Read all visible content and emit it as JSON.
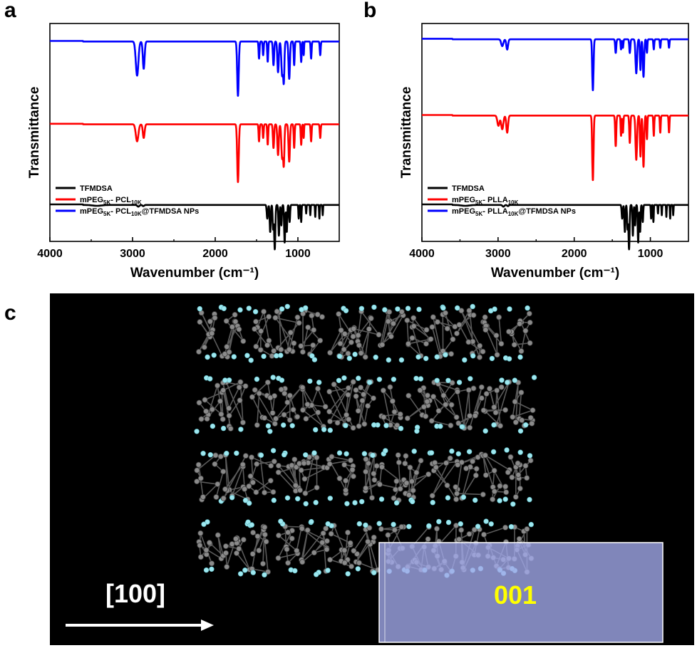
{
  "panels": {
    "a": {
      "letter": "a"
    },
    "b": {
      "letter": "b"
    },
    "c": {
      "letter": "c"
    }
  },
  "chart_data": [
    {
      "type": "line",
      "panel": "a",
      "xlabel": "Wavenumber (cm⁻¹)",
      "ylabel": "Transmittance",
      "xlim": [
        4000,
        500
      ],
      "x_reversed": true,
      "x_ticks": [
        4000,
        3000,
        2000,
        1000
      ],
      "y_ticks_shown": false,
      "legend_position": "bottom-left",
      "series": [
        {
          "name": "TFMDSA",
          "label_parts": [
            [
              "TFMDSA",
              ""
            ]
          ],
          "color": "#000000",
          "offset": 0.83,
          "baseline": 4,
          "peaks": [
            [
              3430,
              0.5,
              80
            ],
            [
              2930,
              1,
              18
            ],
            [
              2870,
              0.7,
              15
            ],
            [
              1370,
              8,
              10
            ],
            [
              1335,
              16,
              9
            ],
            [
              1300,
              14,
              8
            ],
            [
              1280,
              26,
              10
            ],
            [
              1230,
              18,
              9
            ],
            [
              1200,
              12,
              8
            ],
            [
              1160,
              22,
              9
            ],
            [
              1135,
              16,
              8
            ],
            [
              1100,
              10,
              8
            ],
            [
              990,
              8,
              6
            ],
            [
              960,
              10,
              6
            ],
            [
              900,
              5,
              5
            ],
            [
              850,
              6,
              5
            ],
            [
              790,
              7,
              5
            ],
            [
              740,
              8,
              5
            ],
            [
              700,
              6,
              5
            ]
          ]
        },
        {
          "name": "mPEG5K- PCL10K",
          "label_parts": [
            [
              "mPEG",
              ""
            ],
            [
              "5K",
              "sub"
            ],
            [
              "- PCL",
              ""
            ],
            [
              "10K",
              "sub"
            ]
          ],
          "color": "#ff0000",
          "offset": 0.46,
          "baseline": 4,
          "peaks": [
            [
              2945,
              10,
              22
            ],
            [
              2865,
              8,
              15
            ],
            [
              1725,
              34,
              13
            ],
            [
              1470,
              10,
              8
            ],
            [
              1420,
              8,
              8
            ],
            [
              1365,
              12,
              8
            ],
            [
              1295,
              14,
              10
            ],
            [
              1240,
              18,
              12
            ],
            [
              1190,
              20,
              14
            ],
            [
              1170,
              22,
              10
            ],
            [
              1105,
              22,
              12
            ],
            [
              1045,
              14,
              8
            ],
            [
              960,
              12,
              8
            ],
            [
              930,
              8,
              6
            ],
            [
              840,
              10,
              8
            ],
            [
              730,
              8,
              8
            ]
          ]
        },
        {
          "name": "mPEG5K- PCL10K@TFMDSA NPs",
          "label_parts": [
            [
              "mPEG",
              ""
            ],
            [
              "5K",
              "sub"
            ],
            [
              "- PCL",
              ""
            ],
            [
              "10K",
              "sub"
            ],
            [
              "@TFMDSA NPs",
              ""
            ]
          ],
          "color": "#0000ff",
          "offset": 0.08,
          "baseline": 4,
          "peaks": [
            [
              2945,
              20,
              22
            ],
            [
              2865,
              16,
              15
            ],
            [
              1725,
              32,
              13
            ],
            [
              1470,
              10,
              8
            ],
            [
              1420,
              8,
              8
            ],
            [
              1365,
              12,
              8
            ],
            [
              1295,
              14,
              10
            ],
            [
              1240,
              18,
              12
            ],
            [
              1190,
              20,
              14
            ],
            [
              1170,
              22,
              10
            ],
            [
              1105,
              22,
              12
            ],
            [
              1045,
              14,
              8
            ],
            [
              960,
              12,
              8
            ],
            [
              930,
              8,
              6
            ],
            [
              840,
              10,
              8
            ],
            [
              730,
              8,
              8
            ]
          ]
        }
      ]
    },
    {
      "type": "line",
      "panel": "b",
      "xlabel": "Wavenumber (cm⁻¹)",
      "ylabel": "Transmittance",
      "xlim": [
        4000,
        500
      ],
      "x_reversed": true,
      "x_ticks": [
        4000,
        3000,
        2000,
        1000
      ],
      "y_ticks_shown": false,
      "legend_position": "bottom-left",
      "series": [
        {
          "name": "TFMDSA",
          "label_parts": [
            [
              "TFMDSA",
              ""
            ]
          ],
          "color": "#000000",
          "offset": 0.83,
          "baseline": 4,
          "peaks": [
            [
              3430,
              0.5,
              80
            ],
            [
              2930,
              1,
              18
            ],
            [
              2870,
              0.7,
              15
            ],
            [
              1370,
              8,
              10
            ],
            [
              1335,
              16,
              9
            ],
            [
              1300,
              14,
              8
            ],
            [
              1280,
              26,
              10
            ],
            [
              1230,
              18,
              9
            ],
            [
              1200,
              12,
              8
            ],
            [
              1160,
              22,
              9
            ],
            [
              1135,
              16,
              8
            ],
            [
              1100,
              10,
              8
            ],
            [
              990,
              8,
              6
            ],
            [
              960,
              10,
              6
            ],
            [
              900,
              5,
              5
            ],
            [
              850,
              6,
              5
            ],
            [
              790,
              7,
              5
            ],
            [
              740,
              8,
              5
            ],
            [
              700,
              6,
              5
            ]
          ]
        },
        {
          "name": "mPEG5K- PLLA10K",
          "label_parts": [
            [
              "mPEG",
              ""
            ],
            [
              "5K",
              "sub"
            ],
            [
              "- PLLA",
              ""
            ],
            [
              "10K",
              "sub"
            ]
          ],
          "color": "#ff0000",
          "offset": 0.42,
          "baseline": 4,
          "peaks": [
            [
              2995,
              6,
              20
            ],
            [
              2945,
              8,
              20
            ],
            [
              2880,
              10,
              16
            ],
            [
              1755,
              38,
              12
            ],
            [
              1455,
              18,
              10
            ],
            [
              1385,
              12,
              8
            ],
            [
              1360,
              10,
              8
            ],
            [
              1270,
              16,
              10
            ],
            [
              1185,
              26,
              14
            ],
            [
              1130,
              24,
              10
            ],
            [
              1090,
              30,
              12
            ],
            [
              1045,
              14,
              8
            ],
            [
              955,
              12,
              8
            ],
            [
              870,
              10,
              8
            ],
            [
              755,
              10,
              8
            ]
          ]
        },
        {
          "name": "mPEG5K- PLLA10K@TFMDSA NPs",
          "label_parts": [
            [
              "mPEG",
              ""
            ],
            [
              "5K",
              "sub"
            ],
            [
              "- PLLA",
              ""
            ],
            [
              "10K",
              "sub"
            ],
            [
              "@TFMDSA NPs",
              ""
            ]
          ],
          "color": "#0000ff",
          "offset": 0.07,
          "baseline": 4,
          "peaks": [
            [
              2945,
              4,
              20
            ],
            [
              2880,
              6,
              16
            ],
            [
              1755,
              30,
              12
            ],
            [
              1455,
              8,
              10
            ],
            [
              1385,
              6,
              8
            ],
            [
              1360,
              5,
              8
            ],
            [
              1270,
              8,
              10
            ],
            [
              1185,
              20,
              14
            ],
            [
              1130,
              18,
              10
            ],
            [
              1090,
              22,
              12
            ],
            [
              1045,
              8,
              8
            ],
            [
              955,
              6,
              8
            ],
            [
              870,
              5,
              8
            ],
            [
              755,
              5,
              8
            ]
          ]
        }
      ]
    }
  ],
  "structure": {
    "direction_label": "[100]",
    "facet_label": "001",
    "background_color": "#000000",
    "facet_label_color": "#ffff00",
    "arrow_color": "#ffffff",
    "facet_box_color": "#a0a8e8",
    "atom_gray": "#8a8a8a",
    "atom_cyan": "#9ee8f0"
  }
}
